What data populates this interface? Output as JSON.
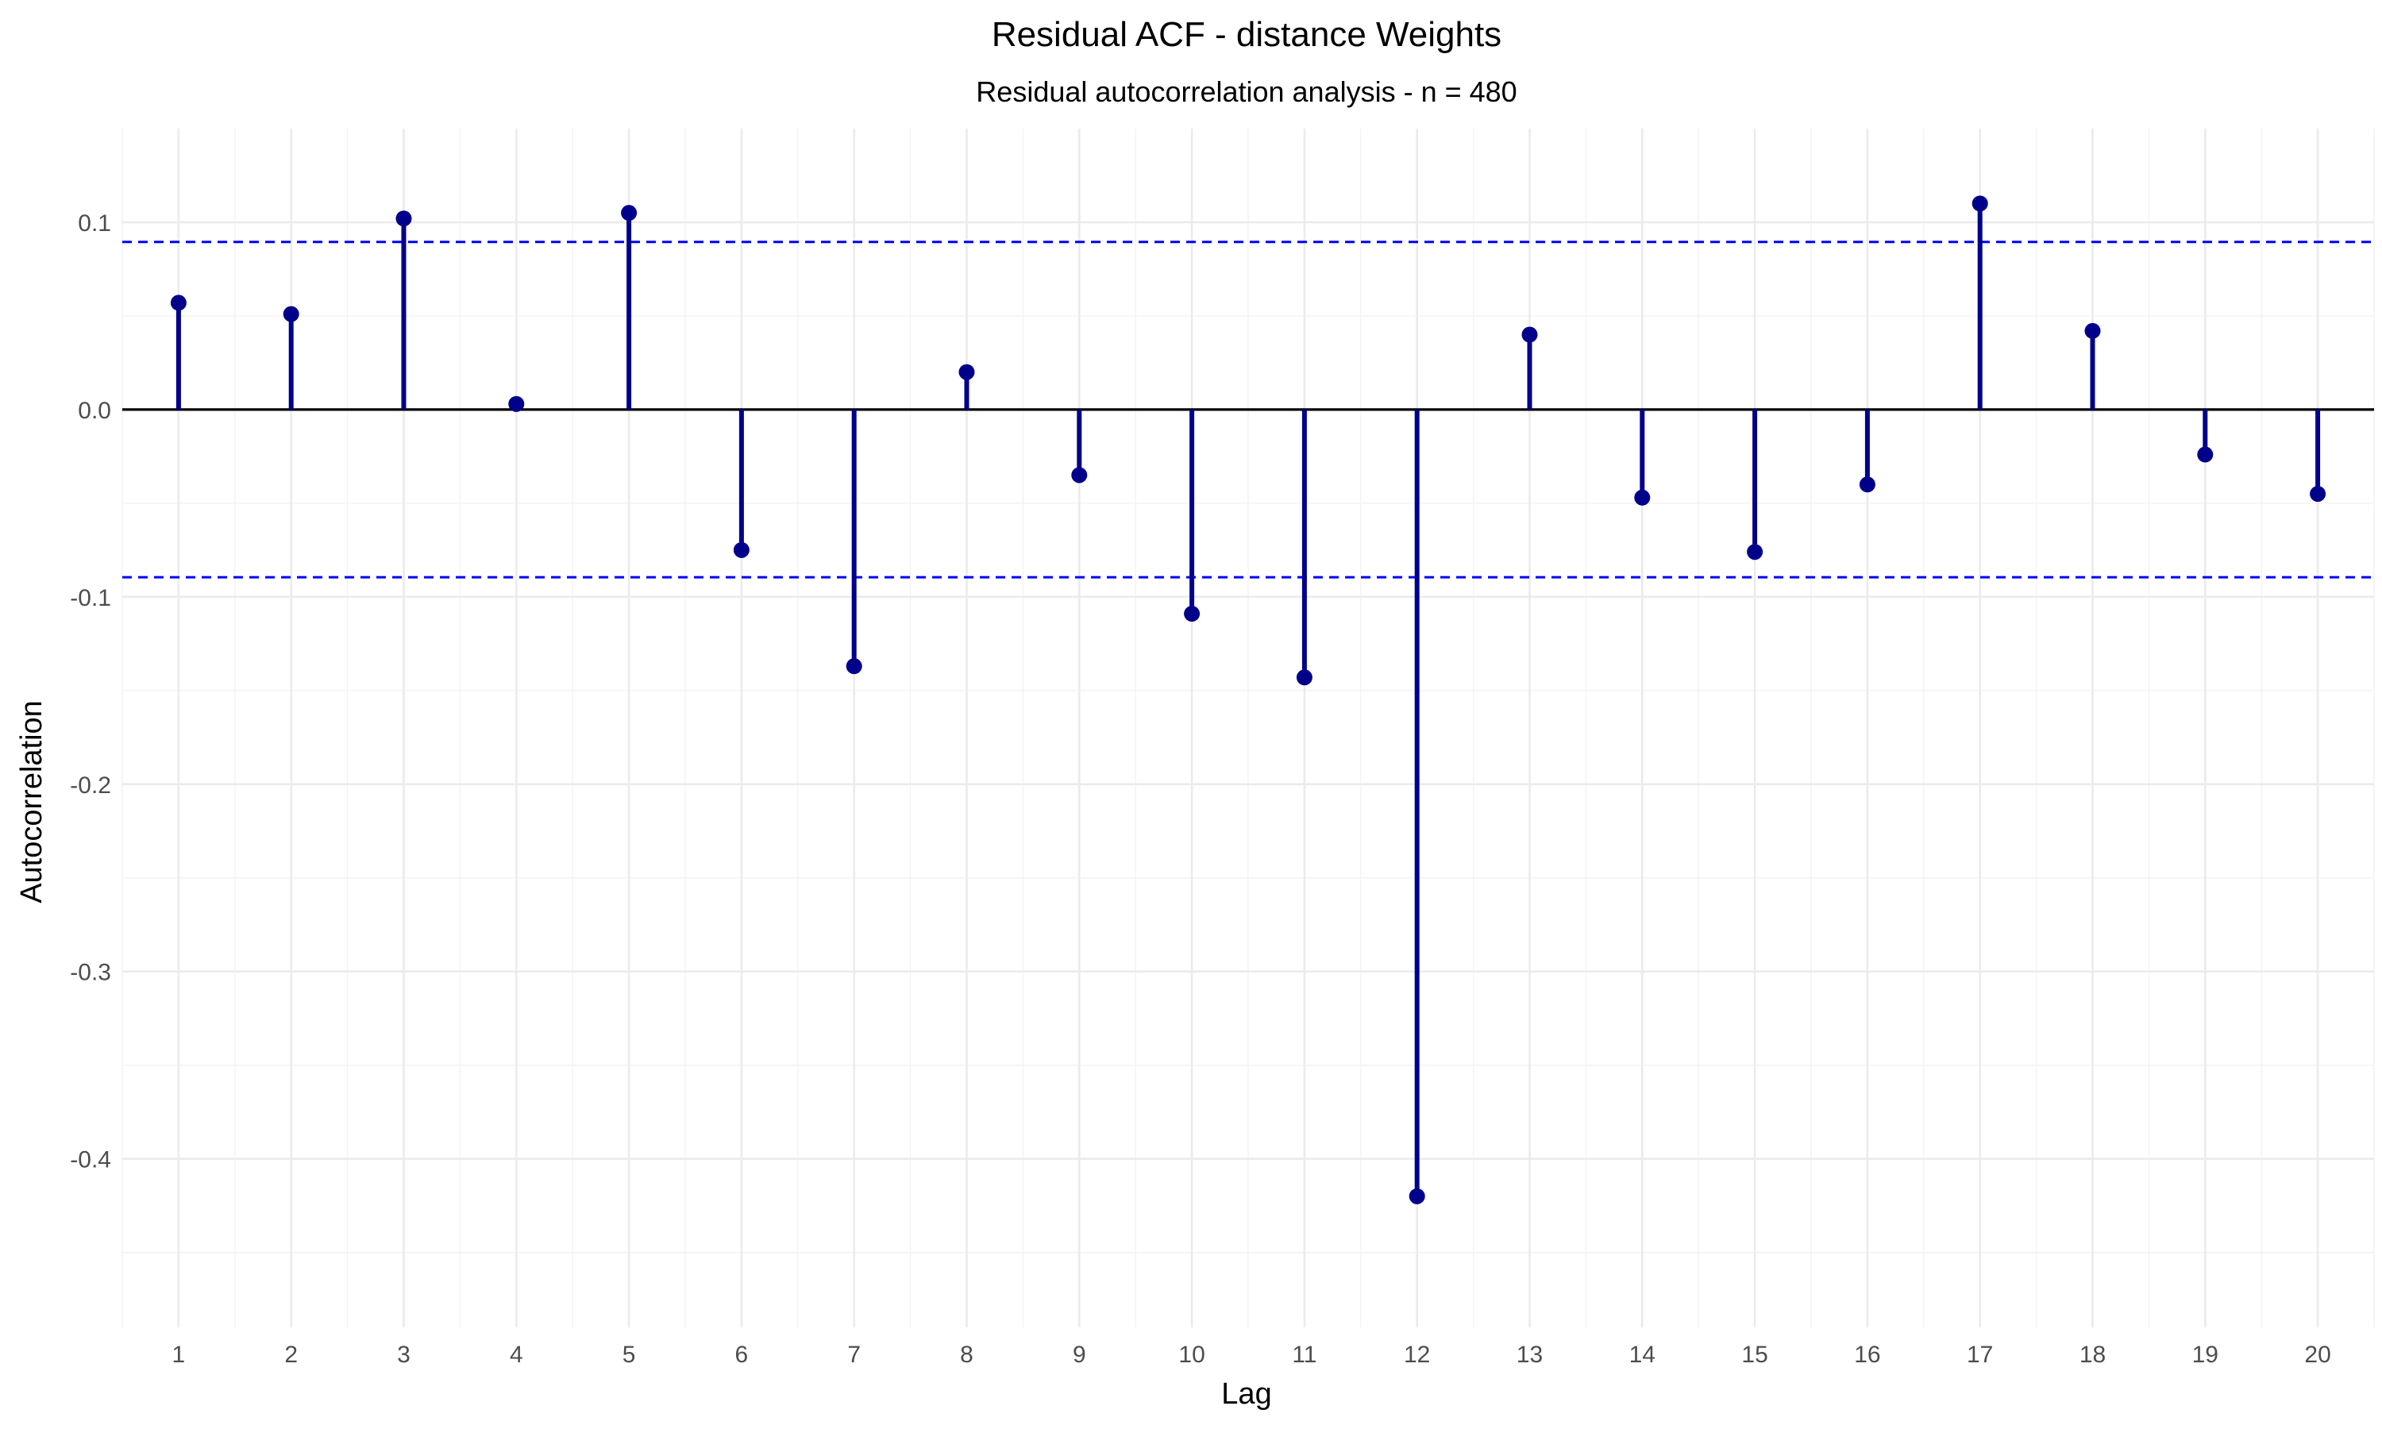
{
  "chart_data": {
    "type": "stem",
    "title": "Residual ACF - distance Weights",
    "subtitle": "Residual autocorrelation analysis - n = 480",
    "xlabel": "Lag",
    "ylabel": "Autocorrelation",
    "x": [
      1,
      2,
      3,
      4,
      5,
      6,
      7,
      8,
      9,
      10,
      11,
      12,
      13,
      14,
      15,
      16,
      17,
      18,
      19,
      20
    ],
    "values": [
      0.057,
      0.051,
      0.102,
      0.003,
      0.105,
      -0.075,
      -0.137,
      0.02,
      -0.035,
      -0.109,
      -0.143,
      -0.42,
      0.04,
      -0.047,
      -0.076,
      -0.04,
      0.11,
      0.042,
      -0.024,
      -0.045
    ],
    "xlim": [
      0.5,
      20.5
    ],
    "ylim": [
      -0.49,
      0.15
    ],
    "x_ticks": [
      "1",
      "2",
      "3",
      "4",
      "5",
      "6",
      "7",
      "8",
      "9",
      "10",
      "11",
      "12",
      "13",
      "14",
      "15",
      "16",
      "17",
      "18",
      "19",
      "20"
    ],
    "y_ticks": [
      0.1,
      0.0,
      -0.1,
      -0.2,
      -0.3,
      -0.4
    ],
    "y_tick_labels": [
      "0.1",
      "0.0",
      "-0.1",
      "-0.2",
      "-0.3",
      "-0.4"
    ],
    "confidence_bounds": [
      0.0895,
      -0.0895
    ],
    "grid": true,
    "legend": "none",
    "colors": {
      "stem": "#00008b",
      "bound_line": "#0000ff",
      "zero_line": "#000000"
    }
  }
}
